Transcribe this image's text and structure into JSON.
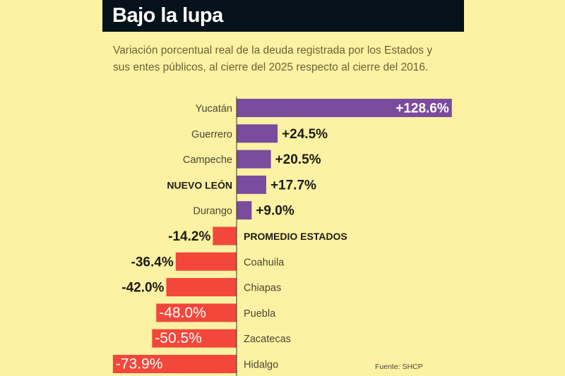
{
  "title": "Bajo la lupa",
  "subtitle": "Variación porcentual real de la deuda registrada por los Estados y sus entes públicos, al cierre del 2025 respecto al cierre del 2016.",
  "source": "Fuente: SHCP",
  "colors": {
    "positive": "#7b4b9e",
    "negative": "#f2473a",
    "background": "#fdf2a4",
    "title_bar": "#06121a"
  },
  "chart_data": {
    "type": "bar",
    "orientation": "horizontal",
    "categories": [
      "Yucatán",
      "Guerrero",
      "Campeche",
      "NUEVO LEÓN",
      "Durango",
      "PROMEDIO ESTADOS",
      "Coahuila",
      "Chiapas",
      "Puebla",
      "Zacatecas",
      "Hidalgo"
    ],
    "values": [
      128.6,
      24.5,
      20.5,
      17.7,
      9.0,
      -14.2,
      -36.4,
      -42.0,
      -48.0,
      -50.5,
      -73.9
    ],
    "labels": [
      "+128.6%",
      "+24.5%",
      "+20.5%",
      "+17.7%",
      "+9.0%",
      "-14.2%",
      "-36.4%",
      "-42.0%",
      "-48.0%",
      "-50.5%",
      "-73.9%"
    ],
    "bold_categories": [
      "NUEVO LEÓN",
      "PROMEDIO ESTADOS"
    ],
    "unit": "%",
    "grid": false
  }
}
